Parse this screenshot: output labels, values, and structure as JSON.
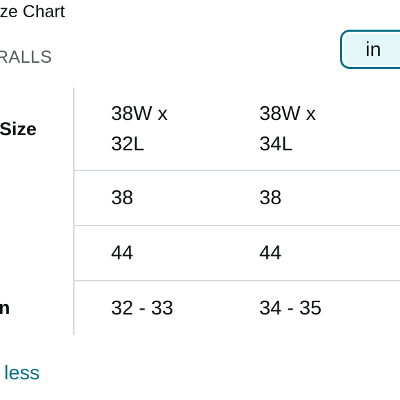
{
  "header": {
    "title": "ize Chart",
    "subtitle": "RALLS"
  },
  "unit_toggle": {
    "label": "in"
  },
  "table": {
    "row_headers": [
      "Size",
      "",
      "",
      "n"
    ],
    "columns": [
      {
        "size": "38W x 32L",
        "cells": [
          "38",
          "44",
          "32 - 33"
        ]
      },
      {
        "size": "38W x 34L",
        "cells": [
          "38",
          "44",
          "34 - 35"
        ]
      }
    ]
  },
  "footer": {
    "toggle_link": "less"
  },
  "colors": {
    "accent": "#007185",
    "toggle_fill": "#e3f6f8",
    "divider": "#d5d9d9",
    "text": "#0f1111",
    "muted_text": "#565959"
  }
}
